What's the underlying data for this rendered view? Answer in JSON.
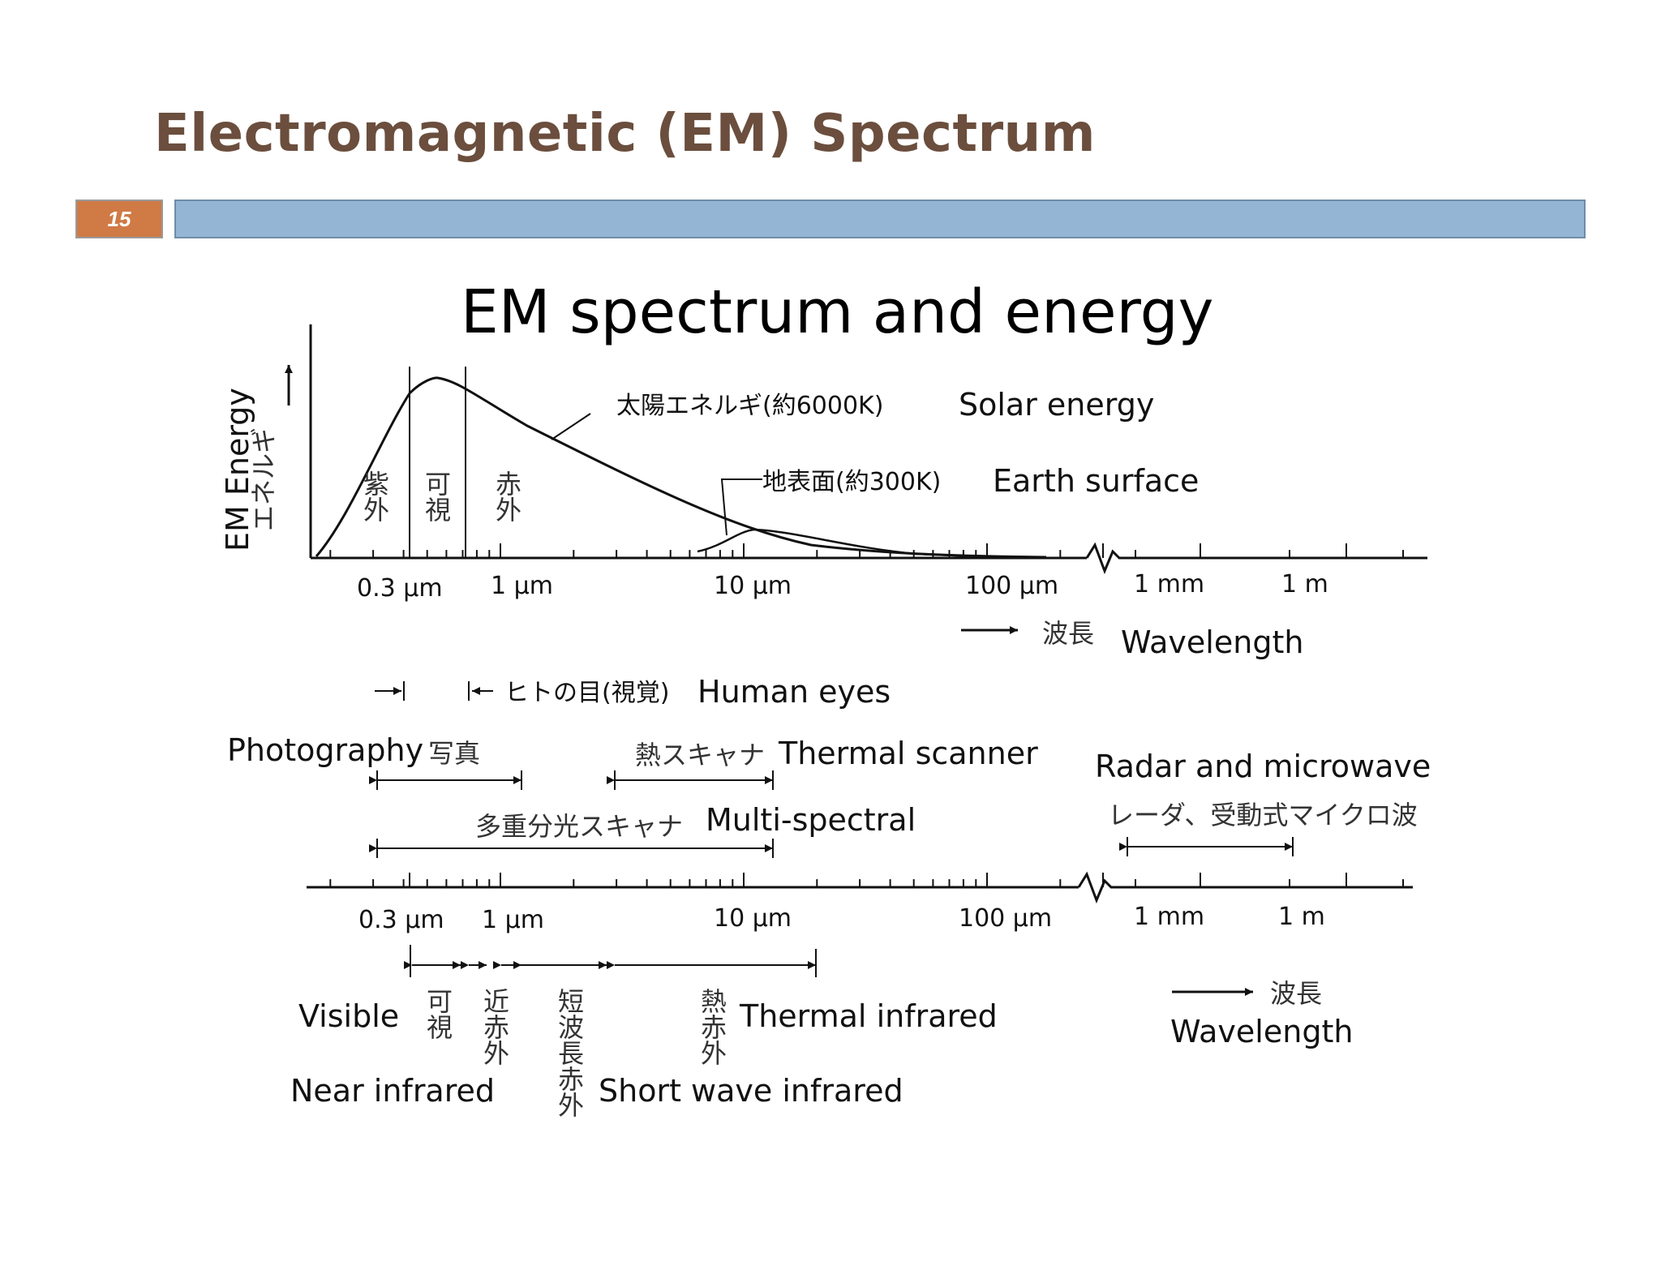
{
  "slide": {
    "title": "Electromagnetic (EM) Spectrum",
    "page_number": "15",
    "accent_color": "#d07a45",
    "bar_color": "#94b5d3",
    "title_color": "#6b4e3d"
  },
  "diagram": {
    "heading": "EM spectrum and energy",
    "y_axis_label": "EM Energy",
    "y_axis_label_jp": "エネルギ",
    "solar_jp": "太陽エネルギ(約6000K)",
    "solar": "Solar energy",
    "earth_jp": "地表面(約300K)",
    "earth": "Earth surface",
    "band_uv": "紫外",
    "band_visible": "可視",
    "band_ir": "赤外",
    "top_ticks": [
      "0.3 μm",
      "1 μm",
      "10 μm",
      "100 μm",
      "1 mm",
      "1 m"
    ],
    "wavelength_jp": "波長",
    "wavelength": "Wavelength",
    "human_eyes_jp": "ヒトの目(視覚)",
    "human_eyes": "Human eyes",
    "photography": "Photography",
    "photography_jp": "写真",
    "thermal_scanner_jp": "熱スキャナ",
    "thermal_scanner": "Thermal scanner",
    "multispectral_jp": "多重分光スキャナ",
    "multispectral": "Multi-spectral",
    "radar": "Radar and microwave",
    "radar_jp": "レーダ、受動式マイクロ波",
    "bottom_ticks": [
      "0.3 μm",
      "1 μm",
      "10 μm",
      "100 μm",
      "1 mm",
      "1 m"
    ],
    "visible": "Visible",
    "visible_jp": "可視",
    "near_ir_jp": "近赤外",
    "near_ir": "Near infrared",
    "swir_jp": "短波長赤外",
    "swir": "Short wave infrared",
    "thermal_ir_jp": "熱赤外",
    "thermal_ir": "Thermal infrared",
    "wavelength_jp_2": "波長",
    "wavelength_2": "Wavelength"
  }
}
